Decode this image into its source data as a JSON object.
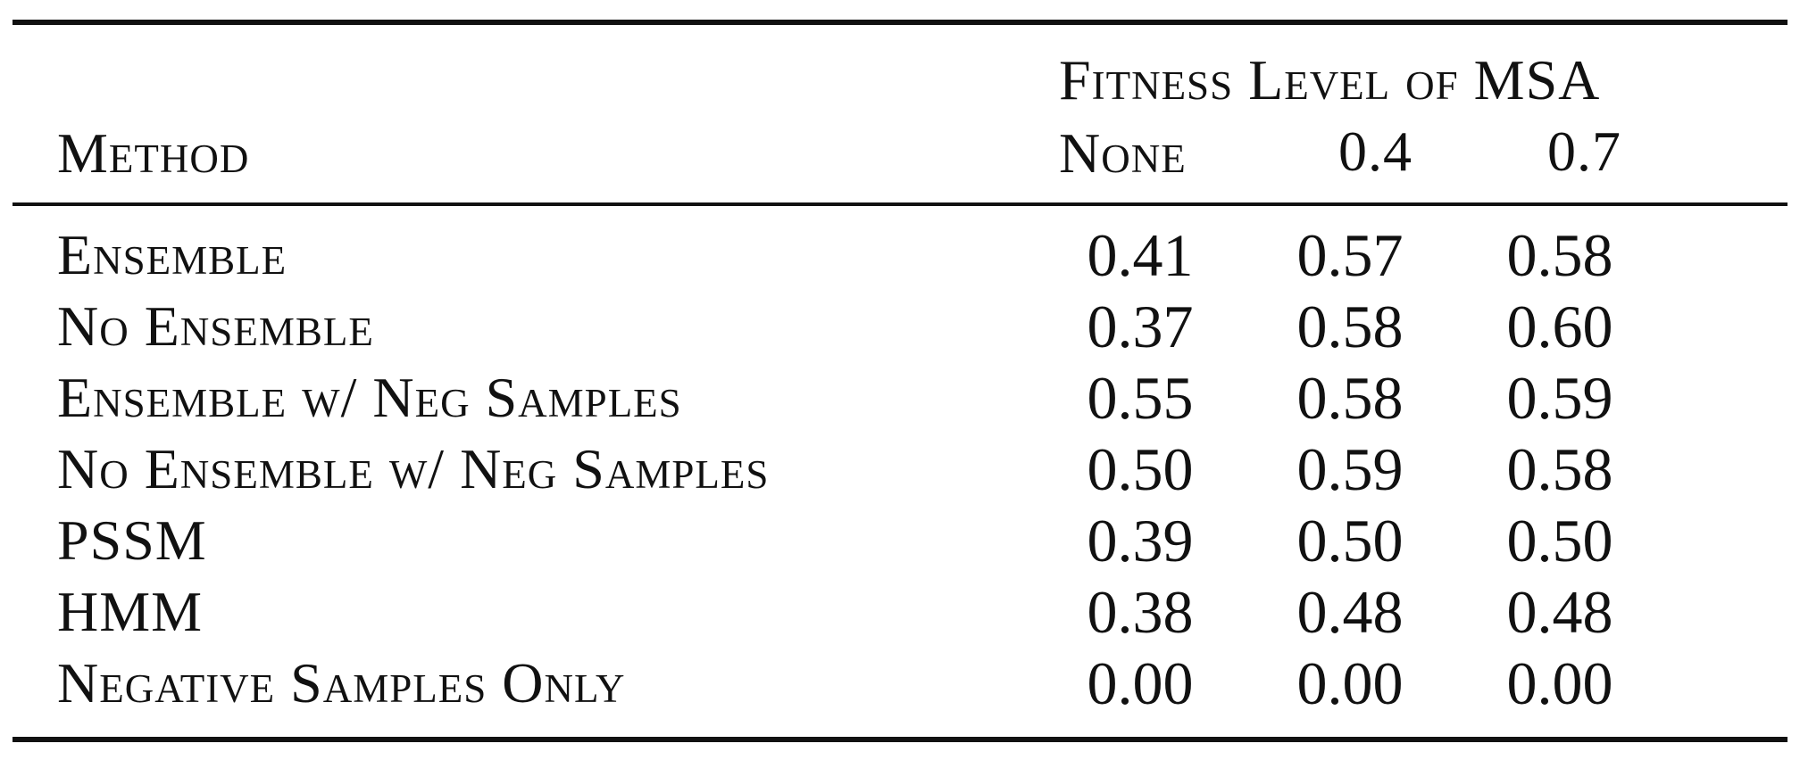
{
  "table": {
    "group_header": "Fitness Level of MSA",
    "method_header": "Method",
    "columns": [
      "None",
      "0.4",
      "0.7"
    ],
    "rows": [
      {
        "method": "Ensemble",
        "values": [
          "0.41",
          "0.57",
          "0.58"
        ]
      },
      {
        "method": "No Ensemble",
        "values": [
          "0.37",
          "0.58",
          "0.60"
        ]
      },
      {
        "method": "Ensemble w/ Neg Samples",
        "values": [
          "0.55",
          "0.58",
          "0.59"
        ]
      },
      {
        "method": "No Ensemble w/ Neg Samples",
        "values": [
          "0.50",
          "0.59",
          "0.58"
        ]
      },
      {
        "method": "PSSM",
        "values": [
          "0.39",
          "0.50",
          "0.50"
        ]
      },
      {
        "method": "HMM",
        "values": [
          "0.38",
          "0.48",
          "0.48"
        ]
      },
      {
        "method": "Negative Samples Only",
        "values": [
          "0.00",
          "0.00",
          "0.00"
        ]
      }
    ]
  }
}
